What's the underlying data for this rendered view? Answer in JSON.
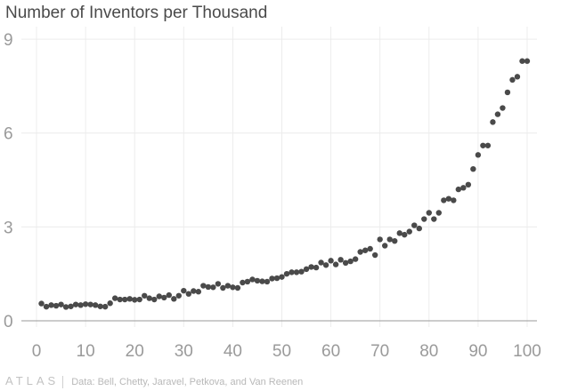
{
  "chart_data": {
    "type": "scatter",
    "title": "Number of Inventors per Thousand",
    "xlabel": "",
    "ylabel": "",
    "xlim": [
      -2,
      102
    ],
    "ylim": [
      -0.2,
      9.4
    ],
    "x_ticks": [
      0,
      10,
      20,
      30,
      40,
      50,
      60,
      70,
      80,
      90,
      100
    ],
    "y_ticks": [
      0,
      3,
      6,
      9
    ],
    "grid": true,
    "point_color": "#4a4a4a",
    "x": [
      1,
      2,
      3,
      4,
      5,
      6,
      7,
      8,
      9,
      10,
      11,
      12,
      13,
      14,
      15,
      16,
      17,
      18,
      19,
      20,
      21,
      22,
      23,
      24,
      25,
      26,
      27,
      28,
      29,
      30,
      31,
      32,
      33,
      34,
      35,
      36,
      37,
      38,
      39,
      40,
      41,
      42,
      43,
      44,
      45,
      46,
      47,
      48,
      49,
      50,
      51,
      52,
      53,
      54,
      55,
      56,
      57,
      58,
      59,
      60,
      61,
      62,
      63,
      64,
      65,
      66,
      67,
      68,
      69,
      70,
      71,
      72,
      73,
      74,
      75,
      76,
      77,
      78,
      79,
      80,
      81,
      82,
      83,
      84,
      85,
      86,
      87,
      88,
      89,
      90,
      91,
      92,
      93,
      94,
      95,
      96,
      97,
      98,
      99,
      100
    ],
    "y": [
      0.55,
      0.45,
      0.5,
      0.48,
      0.52,
      0.44,
      0.46,
      0.52,
      0.5,
      0.53,
      0.52,
      0.5,
      0.46,
      0.45,
      0.56,
      0.72,
      0.68,
      0.68,
      0.7,
      0.67,
      0.68,
      0.8,
      0.72,
      0.68,
      0.78,
      0.74,
      0.82,
      0.7,
      0.8,
      0.96,
      0.86,
      0.95,
      0.93,
      1.12,
      1.08,
      1.07,
      1.18,
      1.05,
      1.12,
      1.07,
      1.05,
      1.22,
      1.25,
      1.32,
      1.28,
      1.26,
      1.25,
      1.35,
      1.36,
      1.4,
      1.5,
      1.55,
      1.55,
      1.57,
      1.65,
      1.72,
      1.7,
      1.86,
      1.78,
      1.92,
      1.8,
      1.95,
      1.85,
      1.9,
      1.97,
      2.2,
      2.25,
      2.3,
      2.1,
      2.6,
      2.4,
      2.6,
      2.55,
      2.8,
      2.75,
      2.85,
      3.05,
      2.95,
      3.25,
      3.45,
      3.25,
      3.45,
      3.85,
      3.9,
      3.85,
      4.2,
      4.25,
      4.35,
      4.85,
      5.3,
      5.6,
      5.6,
      6.35,
      6.6,
      6.8,
      7.3,
      7.7,
      7.8,
      8.3,
      8.3
    ]
  },
  "footer": {
    "brand": "ATLAS",
    "source": "Data: Bell, Chetty, Jaravel, Petkova, and Van Reenen"
  }
}
